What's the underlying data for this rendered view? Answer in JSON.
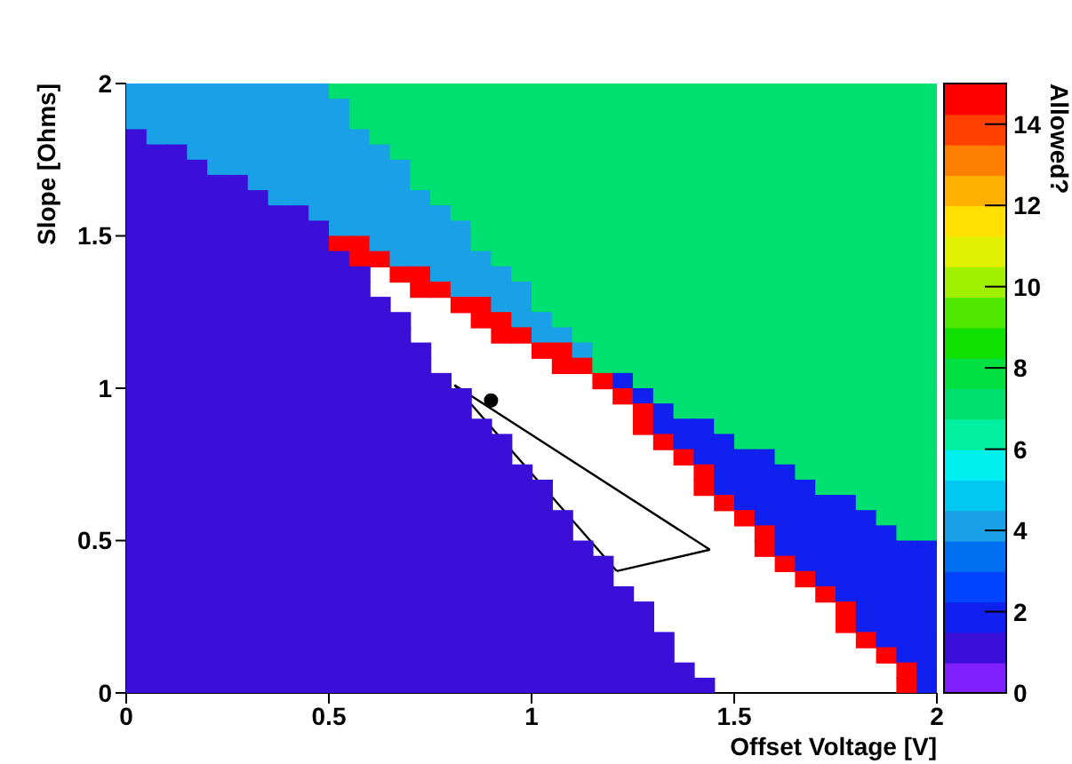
{
  "chart_data": {
    "type": "heatmap",
    "xlabel": "Offset Voltage [V]",
    "ylabel": "Slope [Ohms]",
    "clabel": "Allowed?",
    "x": [
      0.025,
      0.075,
      0.125,
      0.175,
      0.225,
      0.275,
      0.325,
      0.375,
      0.425,
      0.475,
      0.525,
      0.575,
      0.625,
      0.675,
      0.725,
      0.775,
      0.825,
      0.875,
      0.925,
      0.975,
      1.025,
      1.075,
      1.125,
      1.175,
      1.225,
      1.275,
      1.325,
      1.375,
      1.425,
      1.475,
      1.525,
      1.575,
      1.625,
      1.675,
      1.725,
      1.775,
      1.825,
      1.875,
      1.925,
      1.975
    ],
    "y": [
      1.975,
      1.925,
      1.875,
      1.825,
      1.775,
      1.725,
      1.675,
      1.625,
      1.575,
      1.525,
      1.475,
      1.425,
      1.375,
      1.325,
      1.275,
      1.225,
      1.175,
      1.125,
      1.075,
      1.025,
      0.975,
      0.925,
      0.875,
      0.825,
      0.775,
      0.725,
      0.675,
      0.625,
      0.575,
      0.525,
      0.475,
      0.425,
      0.375,
      0.325,
      0.275,
      0.225,
      0.175,
      0.125,
      0.075,
      0.025
    ],
    "xlim": [
      0,
      2
    ],
    "ylim": [
      0,
      2
    ],
    "xticks": [
      0,
      0.5,
      1,
      1.5,
      2
    ],
    "yticks": [
      0,
      0.5,
      1,
      1.5,
      2
    ],
    "clim": [
      0,
      15
    ],
    "cticks": [
      0,
      2,
      4,
      6,
      8,
      10,
      12,
      14
    ],
    "cells": [
      [
        4,
        4,
        4,
        4,
        4,
        4,
        4,
        4,
        4,
        4,
        7,
        7,
        7,
        7,
        7,
        7,
        7,
        7,
        7,
        7,
        7,
        7,
        7,
        7,
        7,
        7,
        7,
        7,
        7,
        7,
        7,
        7,
        7,
        7,
        7,
        7,
        7,
        7,
        7,
        7
      ],
      [
        4,
        4,
        4,
        4,
        4,
        4,
        4,
        4,
        4,
        4,
        4,
        7,
        7,
        7,
        7,
        7,
        7,
        7,
        7,
        7,
        7,
        7,
        7,
        7,
        7,
        7,
        7,
        7,
        7,
        7,
        7,
        7,
        7,
        7,
        7,
        7,
        7,
        7,
        7,
        7
      ],
      [
        4,
        4,
        4,
        4,
        4,
        4,
        4,
        4,
        4,
        4,
        4,
        7,
        7,
        7,
        7,
        7,
        7,
        7,
        7,
        7,
        7,
        7,
        7,
        7,
        7,
        7,
        7,
        7,
        7,
        7,
        7,
        7,
        7,
        7,
        7,
        7,
        7,
        7,
        7,
        7
      ],
      [
        1,
        4,
        4,
        4,
        4,
        4,
        4,
        4,
        4,
        4,
        4,
        4,
        7,
        7,
        7,
        7,
        7,
        7,
        7,
        7,
        7,
        7,
        7,
        7,
        7,
        7,
        7,
        7,
        7,
        7,
        7,
        7,
        7,
        7,
        7,
        7,
        7,
        7,
        7,
        7
      ],
      [
        1,
        1,
        1,
        4,
        4,
        4,
        4,
        4,
        4,
        4,
        4,
        4,
        4,
        7,
        7,
        7,
        7,
        7,
        7,
        7,
        7,
        7,
        7,
        7,
        7,
        7,
        7,
        7,
        7,
        7,
        7,
        7,
        7,
        7,
        7,
        7,
        7,
        7,
        7,
        7
      ],
      [
        1,
        1,
        1,
        1,
        4,
        4,
        4,
        4,
        4,
        4,
        4,
        4,
        4,
        4,
        7,
        7,
        7,
        7,
        7,
        7,
        7,
        7,
        7,
        7,
        7,
        7,
        7,
        7,
        7,
        7,
        7,
        7,
        7,
        7,
        7,
        7,
        7,
        7,
        7,
        7
      ],
      [
        1,
        1,
        1,
        1,
        1,
        1,
        4,
        4,
        4,
        4,
        4,
        4,
        4,
        4,
        7,
        7,
        7,
        7,
        7,
        7,
        7,
        7,
        7,
        7,
        7,
        7,
        7,
        7,
        7,
        7,
        7,
        7,
        7,
        7,
        7,
        7,
        7,
        7,
        7,
        7
      ],
      [
        1,
        1,
        1,
        1,
        1,
        1,
        1,
        4,
        4,
        4,
        4,
        4,
        4,
        4,
        4,
        7,
        7,
        7,
        7,
        7,
        7,
        7,
        7,
        7,
        7,
        7,
        7,
        7,
        7,
        7,
        7,
        7,
        7,
        7,
        7,
        7,
        7,
        7,
        7,
        7
      ],
      [
        1,
        1,
        1,
        1,
        1,
        1,
        1,
        1,
        1,
        4,
        4,
        4,
        4,
        4,
        4,
        4,
        7,
        7,
        7,
        7,
        7,
        7,
        7,
        7,
        7,
        7,
        7,
        7,
        7,
        7,
        7,
        7,
        7,
        7,
        7,
        7,
        7,
        7,
        7,
        7
      ],
      [
        1,
        1,
        1,
        1,
        1,
        1,
        1,
        1,
        1,
        1,
        4,
        4,
        4,
        4,
        4,
        4,
        4,
        7,
        7,
        7,
        7,
        7,
        7,
        7,
        7,
        7,
        7,
        7,
        7,
        7,
        7,
        7,
        7,
        7,
        7,
        7,
        7,
        7,
        7,
        7
      ],
      [
        1,
        1,
        1,
        1,
        1,
        1,
        1,
        1,
        1,
        1,
        15,
        15,
        4,
        4,
        4,
        4,
        4,
        7,
        7,
        7,
        7,
        7,
        7,
        7,
        7,
        7,
        7,
        7,
        7,
        7,
        7,
        7,
        7,
        7,
        7,
        7,
        7,
        7,
        7,
        7
      ],
      [
        1,
        1,
        1,
        1,
        1,
        1,
        1,
        1,
        1,
        1,
        1,
        15,
        15,
        4,
        4,
        4,
        4,
        4,
        7,
        7,
        7,
        7,
        7,
        7,
        7,
        7,
        7,
        7,
        7,
        7,
        7,
        7,
        7,
        7,
        7,
        7,
        7,
        7,
        7,
        7
      ],
      [
        1,
        1,
        1,
        1,
        1,
        1,
        1,
        1,
        1,
        1,
        1,
        1,
        null,
        15,
        15,
        4,
        4,
        4,
        4,
        7,
        7,
        7,
        7,
        7,
        7,
        7,
        7,
        7,
        7,
        7,
        7,
        7,
        7,
        7,
        7,
        7,
        7,
        7,
        7,
        7
      ],
      [
        1,
        1,
        1,
        1,
        1,
        1,
        1,
        1,
        1,
        1,
        1,
        1,
        null,
        null,
        15,
        15,
        4,
        4,
        4,
        4,
        7,
        7,
        7,
        7,
        7,
        7,
        7,
        7,
        7,
        7,
        7,
        7,
        7,
        7,
        7,
        7,
        7,
        7,
        7,
        7
      ],
      [
        1,
        1,
        1,
        1,
        1,
        1,
        1,
        1,
        1,
        1,
        1,
        1,
        1,
        null,
        null,
        null,
        15,
        15,
        4,
        4,
        7,
        7,
        7,
        7,
        7,
        7,
        7,
        7,
        7,
        7,
        7,
        7,
        7,
        7,
        7,
        7,
        7,
        7,
        7,
        7
      ],
      [
        1,
        1,
        1,
        1,
        1,
        1,
        1,
        1,
        1,
        1,
        1,
        1,
        1,
        1,
        null,
        null,
        null,
        15,
        15,
        4,
        4,
        7,
        7,
        7,
        7,
        7,
        7,
        7,
        7,
        7,
        7,
        7,
        7,
        7,
        7,
        7,
        7,
        7,
        7,
        7
      ],
      [
        1,
        1,
        1,
        1,
        1,
        1,
        1,
        1,
        1,
        1,
        1,
        1,
        1,
        1,
        null,
        null,
        null,
        null,
        15,
        15,
        4,
        4,
        7,
        7,
        7,
        7,
        7,
        7,
        7,
        7,
        7,
        7,
        7,
        7,
        7,
        7,
        7,
        7,
        7,
        7
      ],
      [
        1,
        1,
        1,
        1,
        1,
        1,
        1,
        1,
        1,
        1,
        1,
        1,
        1,
        1,
        1,
        null,
        null,
        null,
        null,
        null,
        15,
        15,
        4,
        7,
        7,
        7,
        7,
        7,
        7,
        7,
        7,
        7,
        7,
        7,
        7,
        7,
        7,
        7,
        7,
        7
      ],
      [
        1,
        1,
        1,
        1,
        1,
        1,
        1,
        1,
        1,
        1,
        1,
        1,
        1,
        1,
        1,
        null,
        null,
        null,
        null,
        null,
        null,
        15,
        15,
        7,
        7,
        7,
        7,
        7,
        7,
        7,
        7,
        7,
        7,
        7,
        7,
        7,
        7,
        7,
        7,
        7
      ],
      [
        1,
        1,
        1,
        1,
        1,
        1,
        1,
        1,
        1,
        1,
        1,
        1,
        1,
        1,
        1,
        1,
        null,
        null,
        null,
        null,
        null,
        null,
        null,
        15,
        2,
        7,
        7,
        7,
        7,
        7,
        7,
        7,
        7,
        7,
        7,
        7,
        7,
        7,
        7,
        7
      ],
      [
        1,
        1,
        1,
        1,
        1,
        1,
        1,
        1,
        1,
        1,
        1,
        1,
        1,
        1,
        1,
        1,
        1,
        null,
        null,
        null,
        null,
        null,
        null,
        null,
        15,
        2,
        7,
        7,
        7,
        7,
        7,
        7,
        7,
        7,
        7,
        7,
        7,
        7,
        7,
        7
      ],
      [
        1,
        1,
        1,
        1,
        1,
        1,
        1,
        1,
        1,
        1,
        1,
        1,
        1,
        1,
        1,
        1,
        1,
        null,
        null,
        null,
        null,
        null,
        null,
        null,
        null,
        15,
        2,
        7,
        7,
        7,
        7,
        7,
        7,
        7,
        7,
        7,
        7,
        7,
        7,
        7
      ],
      [
        1,
        1,
        1,
        1,
        1,
        1,
        1,
        1,
        1,
        1,
        1,
        1,
        1,
        1,
        1,
        1,
        1,
        1,
        null,
        null,
        null,
        null,
        null,
        null,
        null,
        15,
        2,
        2,
        2,
        7,
        7,
        7,
        7,
        7,
        7,
        7,
        7,
        7,
        7,
        7
      ],
      [
        1,
        1,
        1,
        1,
        1,
        1,
        1,
        1,
        1,
        1,
        1,
        1,
        1,
        1,
        1,
        1,
        1,
        1,
        1,
        null,
        null,
        null,
        null,
        null,
        null,
        null,
        15,
        2,
        2,
        2,
        7,
        7,
        7,
        7,
        7,
        7,
        7,
        7,
        7,
        7
      ],
      [
        1,
        1,
        1,
        1,
        1,
        1,
        1,
        1,
        1,
        1,
        1,
        1,
        1,
        1,
        1,
        1,
        1,
        1,
        1,
        null,
        null,
        null,
        null,
        null,
        null,
        null,
        null,
        15,
        2,
        2,
        2,
        2,
        7,
        7,
        7,
        7,
        7,
        7,
        7,
        7
      ],
      [
        1,
        1,
        1,
        1,
        1,
        1,
        1,
        1,
        1,
        1,
        1,
        1,
        1,
        1,
        1,
        1,
        1,
        1,
        1,
        1,
        null,
        null,
        null,
        null,
        null,
        null,
        null,
        null,
        15,
        2,
        2,
        2,
        2,
        7,
        7,
        7,
        7,
        7,
        7,
        7
      ],
      [
        1,
        1,
        1,
        1,
        1,
        1,
        1,
        1,
        1,
        1,
        1,
        1,
        1,
        1,
        1,
        1,
        1,
        1,
        1,
        1,
        1,
        null,
        null,
        null,
        null,
        null,
        null,
        null,
        15,
        2,
        2,
        2,
        2,
        2,
        7,
        7,
        7,
        7,
        7,
        7
      ],
      [
        1,
        1,
        1,
        1,
        1,
        1,
        1,
        1,
        1,
        1,
        1,
        1,
        1,
        1,
        1,
        1,
        1,
        1,
        1,
        1,
        1,
        null,
        null,
        null,
        null,
        null,
        null,
        null,
        null,
        15,
        2,
        2,
        2,
        2,
        2,
        2,
        7,
        7,
        7,
        7
      ],
      [
        1,
        1,
        1,
        1,
        1,
        1,
        1,
        1,
        1,
        1,
        1,
        1,
        1,
        1,
        1,
        1,
        1,
        1,
        1,
        1,
        1,
        1,
        null,
        null,
        null,
        null,
        null,
        null,
        null,
        null,
        15,
        2,
        2,
        2,
        2,
        2,
        2,
        7,
        7,
        7
      ],
      [
        1,
        1,
        1,
        1,
        1,
        1,
        1,
        1,
        1,
        1,
        1,
        1,
        1,
        1,
        1,
        1,
        1,
        1,
        1,
        1,
        1,
        1,
        null,
        null,
        null,
        null,
        null,
        null,
        null,
        null,
        null,
        15,
        2,
        2,
        2,
        2,
        2,
        2,
        7,
        7
      ],
      [
        1,
        1,
        1,
        1,
        1,
        1,
        1,
        1,
        1,
        1,
        1,
        1,
        1,
        1,
        1,
        1,
        1,
        1,
        1,
        1,
        1,
        1,
        1,
        null,
        null,
        null,
        null,
        null,
        null,
        null,
        null,
        15,
        2,
        2,
        2,
        2,
        2,
        2,
        2,
        2
      ],
      [
        1,
        1,
        1,
        1,
        1,
        1,
        1,
        1,
        1,
        1,
        1,
        1,
        1,
        1,
        1,
        1,
        1,
        1,
        1,
        1,
        1,
        1,
        1,
        1,
        null,
        null,
        null,
        null,
        null,
        null,
        null,
        null,
        15,
        2,
        2,
        2,
        2,
        2,
        2,
        2
      ],
      [
        1,
        1,
        1,
        1,
        1,
        1,
        1,
        1,
        1,
        1,
        1,
        1,
        1,
        1,
        1,
        1,
        1,
        1,
        1,
        1,
        1,
        1,
        1,
        1,
        null,
        null,
        null,
        null,
        null,
        null,
        null,
        null,
        null,
        15,
        2,
        2,
        2,
        2,
        2,
        2
      ],
      [
        1,
        1,
        1,
        1,
        1,
        1,
        1,
        1,
        1,
        1,
        1,
        1,
        1,
        1,
        1,
        1,
        1,
        1,
        1,
        1,
        1,
        1,
        1,
        1,
        1,
        null,
        null,
        null,
        null,
        null,
        null,
        null,
        null,
        null,
        15,
        2,
        2,
        2,
        2,
        2
      ],
      [
        1,
        1,
        1,
        1,
        1,
        1,
        1,
        1,
        1,
        1,
        1,
        1,
        1,
        1,
        1,
        1,
        1,
        1,
        1,
        1,
        1,
        1,
        1,
        1,
        1,
        1,
        null,
        null,
        null,
        null,
        null,
        null,
        null,
        null,
        null,
        15,
        2,
        2,
        2,
        2
      ],
      [
        1,
        1,
        1,
        1,
        1,
        1,
        1,
        1,
        1,
        1,
        1,
        1,
        1,
        1,
        1,
        1,
        1,
        1,
        1,
        1,
        1,
        1,
        1,
        1,
        1,
        1,
        null,
        null,
        null,
        null,
        null,
        null,
        null,
        null,
        null,
        15,
        2,
        2,
        2,
        2
      ],
      [
        1,
        1,
        1,
        1,
        1,
        1,
        1,
        1,
        1,
        1,
        1,
        1,
        1,
        1,
        1,
        1,
        1,
        1,
        1,
        1,
        1,
        1,
        1,
        1,
        1,
        1,
        1,
        null,
        null,
        null,
        null,
        null,
        null,
        null,
        null,
        null,
        15,
        2,
        2,
        2
      ],
      [
        1,
        1,
        1,
        1,
        1,
        1,
        1,
        1,
        1,
        1,
        1,
        1,
        1,
        1,
        1,
        1,
        1,
        1,
        1,
        1,
        1,
        1,
        1,
        1,
        1,
        1,
        1,
        null,
        null,
        null,
        null,
        null,
        null,
        null,
        null,
        null,
        null,
        15,
        2,
        2
      ],
      [
        1,
        1,
        1,
        1,
        1,
        1,
        1,
        1,
        1,
        1,
        1,
        1,
        1,
        1,
        1,
        1,
        1,
        1,
        1,
        1,
        1,
        1,
        1,
        1,
        1,
        1,
        1,
        1,
        null,
        null,
        null,
        null,
        null,
        null,
        null,
        null,
        null,
        null,
        15,
        2
      ],
      [
        1,
        1,
        1,
        1,
        1,
        1,
        1,
        1,
        1,
        1,
        1,
        1,
        1,
        1,
        1,
        1,
        1,
        1,
        1,
        1,
        1,
        1,
        1,
        1,
        1,
        1,
        1,
        1,
        1,
        null,
        null,
        null,
        null,
        null,
        null,
        null,
        null,
        null,
        15,
        2
      ]
    ],
    "series": [
      {
        "type": "line",
        "color": "#000000",
        "marker": "none",
        "line_style": "solid",
        "x": [
          0.81,
          1.44
        ],
        "values": [
          1.01,
          0.47
        ]
      },
      {
        "type": "line",
        "color": "#000000",
        "marker": "none",
        "line_style": "solid",
        "x": [
          1.21,
          1.44
        ],
        "values": [
          0.4,
          0.47
        ]
      },
      {
        "type": "line",
        "color": "#000000",
        "marker": "none",
        "line_style": "solid",
        "x": [
          0.81,
          1.21
        ],
        "values": [
          1.01,
          0.4
        ]
      },
      {
        "type": "scatter",
        "color": "#000000",
        "marker": "circle",
        "x": [
          0.9
        ],
        "values": [
          0.96
        ]
      }
    ]
  }
}
